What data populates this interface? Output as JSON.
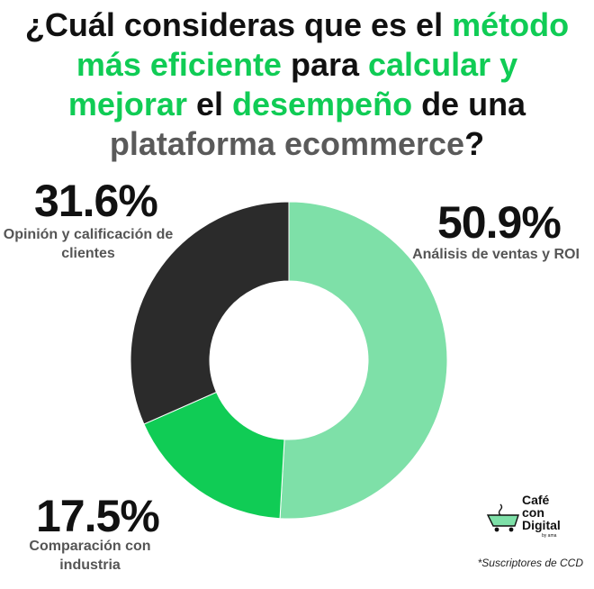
{
  "title": {
    "seg1": "¿Cuál consideras que es el ",
    "seg2": "método",
    "seg3": "más eficiente",
    "seg4": " para ",
    "seg5": "calcular y",
    "seg6": "mejorar",
    "seg7": " el ",
    "seg8": "desempeño",
    "seg9": " de una",
    "seg10": "plataforma ecommerce",
    "seg11": "?"
  },
  "chart_data": {
    "type": "pie",
    "categories": [
      "Análisis de ventas y ROI",
      "Comparación con industria",
      "Opinión y calificación de clientes"
    ],
    "values": [
      50.9,
      17.5,
      31.6
    ],
    "value_labels": [
      "50.9%",
      "17.5%",
      "31.6%"
    ],
    "colors": [
      "#7ee0a8",
      "#10cc55",
      "#2b2b2b"
    ],
    "hole": 0.5
  },
  "note": "*Suscriptores de CCD",
  "logo": {
    "line1": "Café",
    "line2": "con",
    "line3": "Digital",
    "by": "by ama"
  }
}
